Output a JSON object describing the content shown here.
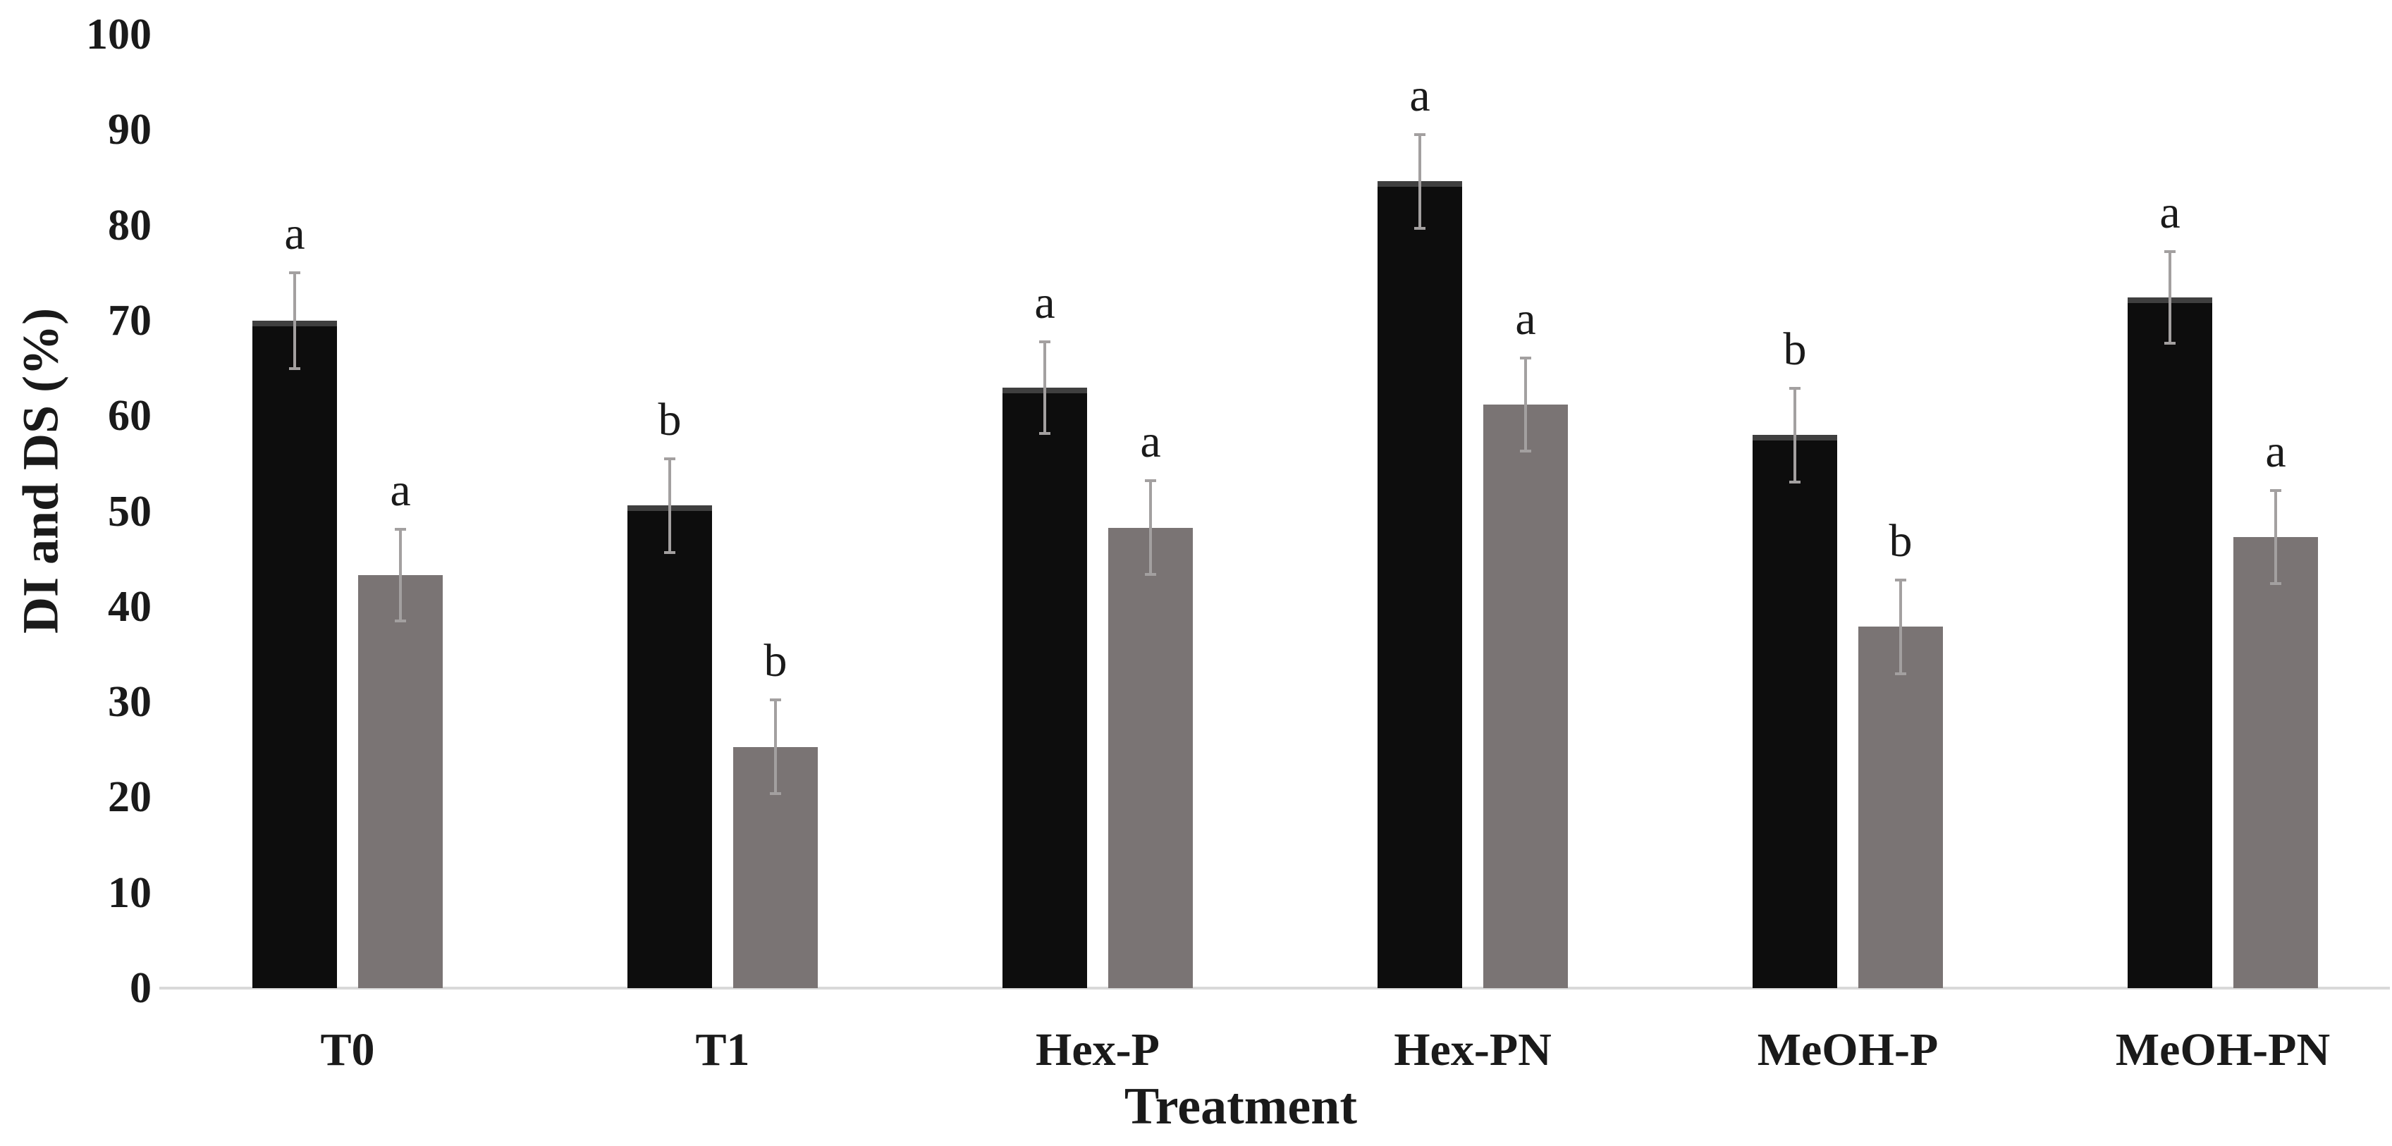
{
  "figure": {
    "background": "#ffffff",
    "black_bar_color": "#0d0d0d",
    "black_bar_top_edge": "#3f3f3f",
    "gray_bar_color": "#7a7474",
    "error_bar_color": "#a3a0a0",
    "axis_line_color": "#d9d9d9",
    "text_color": "#1a1a1a"
  },
  "chart_data": {
    "type": "bar",
    "title": "",
    "xlabel": "Treatment",
    "ylabel": "DI and DS (%)",
    "ylim": [
      0,
      100
    ],
    "ytick_step": 10,
    "ytick_labels": [
      "0",
      "10",
      "20",
      "30",
      "40",
      "50",
      "60",
      "70",
      "80",
      "90",
      "100"
    ],
    "grid": false,
    "legend_position": "none",
    "categories": [
      "T0",
      "T1",
      "Hex-P",
      "Hex-PN",
      "MeOH-P",
      "MeOH-PN"
    ],
    "series": [
      {
        "name": "DI",
        "color": "#0d0d0d",
        "values": [
          70.0,
          50.6,
          63.0,
          84.6,
          58.0,
          72.4
        ],
        "errors": [
          5.0,
          4.9,
          4.8,
          4.9,
          4.9,
          4.8
        ],
        "sig_letters": [
          "a",
          "b",
          "a",
          "a",
          "b",
          "a"
        ]
      },
      {
        "name": "DS",
        "color": "#7a7474",
        "values": [
          43.3,
          25.3,
          48.3,
          61.2,
          37.9,
          47.3
        ],
        "errors": [
          4.8,
          4.9,
          4.9,
          4.9,
          4.9,
          4.9
        ],
        "sig_letters": [
          "a",
          "b",
          "a",
          "a",
          "b",
          "a"
        ]
      }
    ],
    "error_bars": true,
    "annotations": "letters above error bars denote significance groups"
  }
}
